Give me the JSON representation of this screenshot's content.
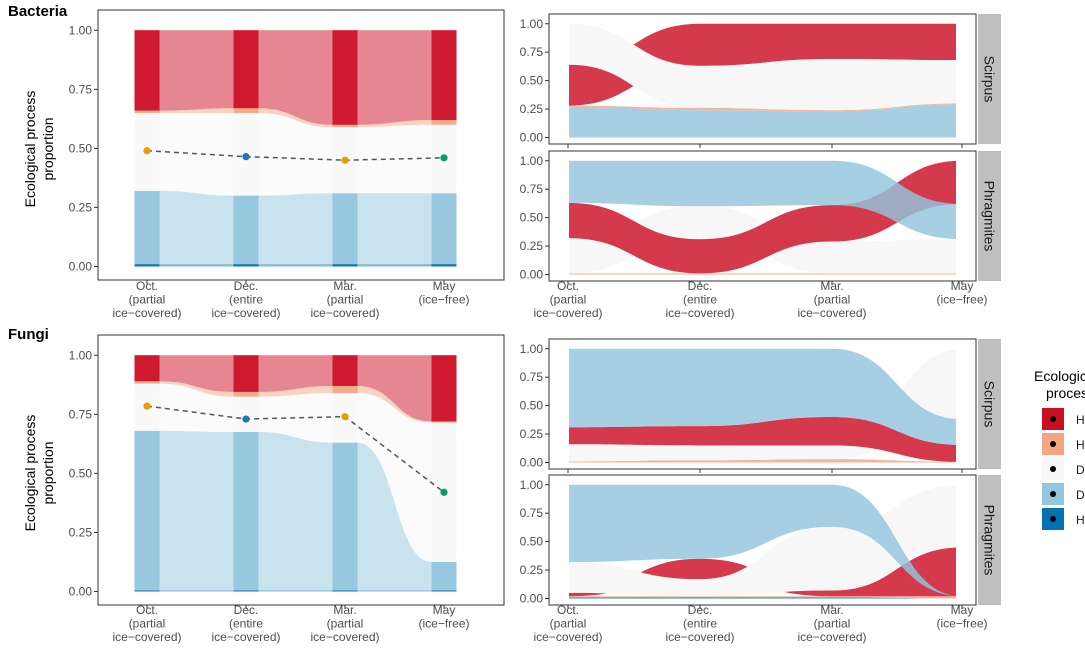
{
  "x_categories": [
    [
      "Oct.",
      "(partial",
      "ice−covered)"
    ],
    [
      "Dec.",
      "(entire",
      "ice−covered)"
    ],
    [
      "Mar.",
      "(partial",
      "ice−covered)"
    ],
    [
      "May",
      "(ice−free)"
    ]
  ],
  "y_ticks": [
    "0.00",
    "0.25",
    "0.50",
    "0.75",
    "1.00"
  ],
  "ylabel_line1": "Ecological process",
  "ylabel_line2": "proportion",
  "legend": {
    "title_line1": "Ecological",
    "title_line2": "process",
    "items": [
      {
        "key": "HoS",
        "color": "#CB0D24"
      },
      {
        "key": "HD",
        "color": "#F4A582"
      },
      {
        "key": "DR",
        "color": "#F7F7F7"
      },
      {
        "key": "DL",
        "color": "#92C5DE"
      },
      {
        "key": "HeS",
        "color": "#0571B0"
      }
    ]
  },
  "chart_data": [
    {
      "type": "area",
      "panel": "Bacteria (all)",
      "title": "Bacteria",
      "xlabel": "",
      "ylabel": "Ecological process proportion",
      "ylim": [
        0,
        1
      ],
      "series": [
        {
          "name": "HeS",
          "values": [
            0.01,
            0.01,
            0.01,
            0.01
          ]
        },
        {
          "name": "DL",
          "values": [
            0.31,
            0.29,
            0.3,
            0.3
          ]
        },
        {
          "name": "DR",
          "values": [
            0.33,
            0.35,
            0.28,
            0.29
          ]
        },
        {
          "name": "HD",
          "values": [
            0.01,
            0.02,
            0.01,
            0.02
          ]
        },
        {
          "name": "HoS",
          "values": [
            0.34,
            0.33,
            0.4,
            0.38
          ]
        }
      ],
      "dr_point": {
        "values": [
          0.49,
          0.465,
          0.45,
          0.46
        ],
        "colors": [
          "#E69F00",
          "#1F77B4",
          "#E69F00",
          "#009E73"
        ]
      }
    },
    {
      "type": "area",
      "panel": "Fungi (all)",
      "title": "Fungi",
      "xlabel": "",
      "ylabel": "Ecological process proportion",
      "ylim": [
        0,
        1
      ],
      "series": [
        {
          "name": "HeS",
          "values": [
            0.005,
            0.005,
            0.005,
            0.005
          ]
        },
        {
          "name": "DL",
          "values": [
            0.675,
            0.67,
            0.625,
            0.12
          ]
        },
        {
          "name": "DR",
          "values": [
            0.2,
            0.15,
            0.21,
            0.59
          ]
        },
        {
          "name": "HD",
          "values": [
            0.01,
            0.02,
            0.03,
            0.005
          ]
        },
        {
          "name": "HoS",
          "values": [
            0.11,
            0.155,
            0.13,
            0.28
          ]
        }
      ],
      "dr_point": {
        "values": [
          0.785,
          0.73,
          0.74,
          0.42
        ],
        "colors": [
          "#E69F00",
          "#1F77B4",
          "#E69F00",
          "#009E73"
        ]
      }
    },
    {
      "type": "area",
      "panel": "Bacteria Scirpus",
      "facet": "Scirpus",
      "ylim": [
        0,
        1
      ],
      "series": [
        {
          "name": "HeS",
          "values": [
            0.0,
            0.0,
            0.0,
            0.0
          ]
        },
        {
          "name": "DL",
          "values": [
            0.27,
            0.24,
            0.23,
            0.29
          ]
        },
        {
          "name": "HD",
          "values": [
            0.01,
            0.02,
            0.01,
            0.01
          ]
        },
        {
          "name": "HoS",
          "values": [
            0.36,
            0.37,
            0.31,
            0.32
          ]
        },
        {
          "name": "DR",
          "values": [
            0.36,
            0.37,
            0.45,
            0.38
          ]
        }
      ],
      "order": [
        [
          "HeS",
          "DL",
          "HD",
          "HoS",
          "DR"
        ],
        [
          "HeS",
          "DL",
          "HD",
          "DR",
          "HoS"
        ],
        [
          "HeS",
          "DL",
          "HD",
          "DR",
          "HoS"
        ],
        [
          "HeS",
          "DL",
          "HD",
          "DR",
          "HoS"
        ]
      ]
    },
    {
      "type": "area",
      "panel": "Bacteria Phragmites",
      "facet": "Phragmites",
      "ylim": [
        0,
        1
      ],
      "series": [
        {
          "name": "HeS",
          "values": [
            0.0,
            0.0,
            0.0,
            0.0
          ]
        },
        {
          "name": "HD",
          "values": [
            0.01,
            0.01,
            0.01,
            0.01
          ]
        },
        {
          "name": "DR",
          "values": [
            0.31,
            0.29,
            0.28,
            0.3
          ]
        },
        {
          "name": "HoS",
          "values": [
            0.31,
            0.3,
            0.32,
            0.38
          ]
        },
        {
          "name": "DL",
          "values": [
            0.37,
            0.4,
            0.39,
            0.31
          ]
        }
      ],
      "order": [
        [
          "HeS",
          "HD",
          "DR",
          "HoS",
          "DL"
        ],
        [
          "HeS",
          "HD",
          "HoS",
          "DR",
          "DL"
        ],
        [
          "HeS",
          "HD",
          "DR",
          "HoS",
          "DL"
        ],
        [
          "HeS",
          "HD",
          "DR",
          "DL",
          "HoS"
        ]
      ]
    },
    {
      "type": "area",
      "panel": "Fungi Scirpus",
      "facet": "Scirpus",
      "ylim": [
        0,
        1
      ],
      "series": [
        {
          "name": "HeS",
          "values": [
            0.0,
            0.0,
            0.0,
            0.0
          ]
        },
        {
          "name": "HD",
          "values": [
            0.01,
            0.02,
            0.03,
            0.005
          ]
        },
        {
          "name": "DR",
          "values": [
            0.15,
            0.13,
            0.12,
            0.62
          ]
        },
        {
          "name": "HoS",
          "values": [
            0.15,
            0.17,
            0.25,
            0.15
          ]
        },
        {
          "name": "DL",
          "values": [
            0.69,
            0.68,
            0.6,
            0.225
          ]
        }
      ],
      "order": [
        [
          "HeS",
          "HD",
          "DR",
          "HoS",
          "DL"
        ],
        [
          "HeS",
          "HD",
          "DR",
          "HoS",
          "DL"
        ],
        [
          "HeS",
          "HD",
          "DR",
          "HoS",
          "DL"
        ],
        [
          "HeS",
          "HD",
          "HoS",
          "DL",
          "DR"
        ]
      ]
    },
    {
      "type": "area",
      "panel": "Fungi Phragmites",
      "facet": "Phragmites",
      "ylim": [
        0,
        1
      ],
      "series": [
        {
          "name": "HeS",
          "values": [
            0.01,
            0.01,
            0.01,
            0.0
          ]
        },
        {
          "name": "HD",
          "values": [
            0.01,
            0.01,
            0.01,
            0.02
          ]
        },
        {
          "name": "HoS",
          "values": [
            0.03,
            0.18,
            0.05,
            0.43
          ]
        },
        {
          "name": "DR",
          "values": [
            0.27,
            0.15,
            0.56,
            0.55
          ]
        },
        {
          "name": "DL",
          "values": [
            0.68,
            0.65,
            0.37,
            0.0
          ]
        }
      ],
      "order": [
        [
          "HeS",
          "HD",
          "HoS",
          "DR",
          "DL"
        ],
        [
          "HeS",
          "HD",
          "DR",
          "HoS",
          "DL"
        ],
        [
          "HeS",
          "HD",
          "HoS",
          "DR",
          "DL"
        ],
        [
          "HeS",
          "HD",
          "DL",
          "HoS",
          "DR"
        ]
      ]
    }
  ]
}
